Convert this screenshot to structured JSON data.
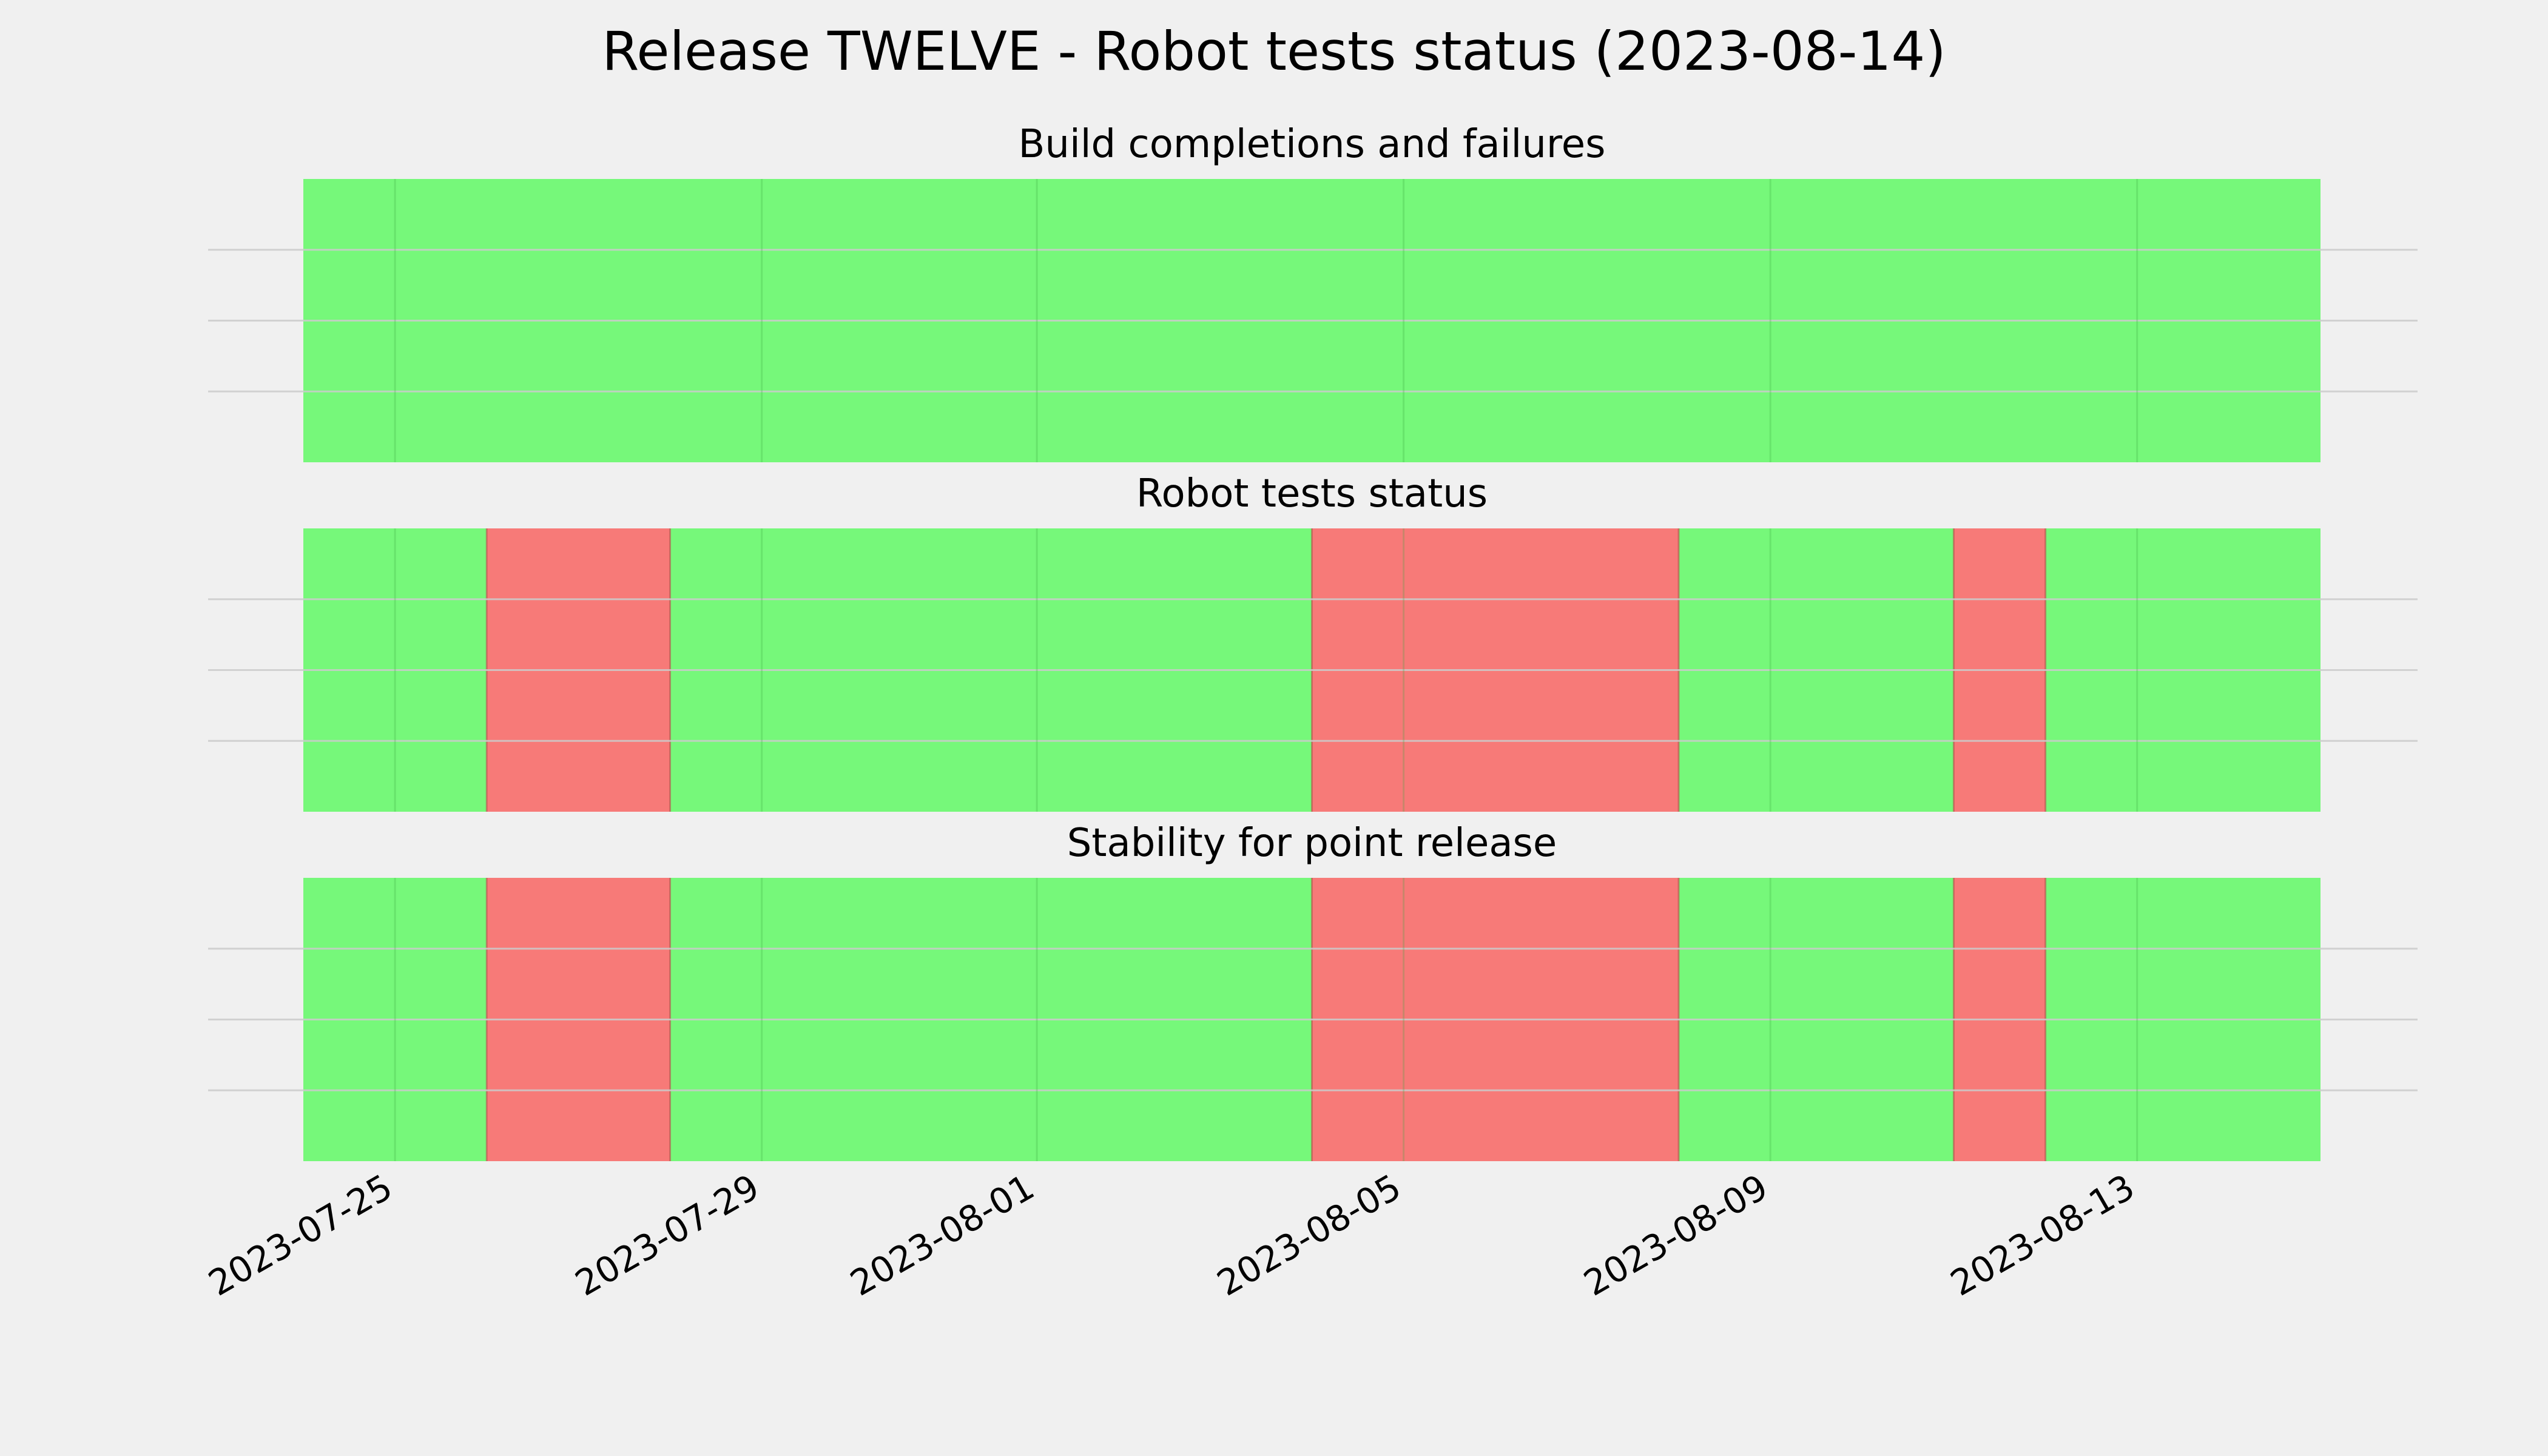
{
  "title": "Release TWELVE - Robot tests status (2023-08-14)",
  "colors": {
    "background": "#f0f0f0",
    "pass": "#76f87a",
    "fail": "#f77a78",
    "grid": "#cbcbcb",
    "day_line": "#66de6a"
  },
  "chart_data": [
    {
      "type": "bar",
      "title": "Build completions and failures",
      "xlabel": "",
      "ylabel": "",
      "grid": true,
      "x_axis": "date",
      "xlim": [
        "2023-07-24",
        "2023-08-15"
      ],
      "xticks": [
        "2023-07-25",
        "2023-07-29",
        "2023-08-01",
        "2023-08-05",
        "2023-08-09",
        "2023-08-13"
      ],
      "tick_labels_visible": false,
      "segments": [
        {
          "start": "2023-07-24",
          "end": "2023-08-15",
          "status": "pass"
        }
      ]
    },
    {
      "type": "bar",
      "title": "Robot tests status",
      "xlabel": "",
      "ylabel": "",
      "grid": true,
      "x_axis": "date",
      "xlim": [
        "2023-07-24",
        "2023-08-15"
      ],
      "xticks": [
        "2023-07-25",
        "2023-07-29",
        "2023-08-01",
        "2023-08-05",
        "2023-08-09",
        "2023-08-13"
      ],
      "tick_labels_visible": false,
      "segments": [
        {
          "start": "2023-07-24",
          "end": "2023-07-26",
          "status": "pass"
        },
        {
          "start": "2023-07-26",
          "end": "2023-07-28",
          "status": "fail"
        },
        {
          "start": "2023-07-28",
          "end": "2023-08-04",
          "status": "pass"
        },
        {
          "start": "2023-08-04",
          "end": "2023-08-08",
          "status": "fail"
        },
        {
          "start": "2023-08-08",
          "end": "2023-08-11",
          "status": "pass"
        },
        {
          "start": "2023-08-11",
          "end": "2023-08-12",
          "status": "fail"
        },
        {
          "start": "2023-08-12",
          "end": "2023-08-15",
          "status": "pass"
        }
      ]
    },
    {
      "type": "bar",
      "title": "Stability for point release",
      "xlabel": "",
      "ylabel": "",
      "grid": true,
      "x_axis": "date",
      "xlim": [
        "2023-07-24",
        "2023-08-15"
      ],
      "xticks": [
        "2023-07-25",
        "2023-07-29",
        "2023-08-01",
        "2023-08-05",
        "2023-08-09",
        "2023-08-13"
      ],
      "tick_labels_visible": true,
      "segments": [
        {
          "start": "2023-07-24",
          "end": "2023-07-26",
          "status": "pass"
        },
        {
          "start": "2023-07-26",
          "end": "2023-07-28",
          "status": "fail"
        },
        {
          "start": "2023-07-28",
          "end": "2023-08-04",
          "status": "pass"
        },
        {
          "start": "2023-08-04",
          "end": "2023-08-08",
          "status": "fail"
        },
        {
          "start": "2023-08-08",
          "end": "2023-08-11",
          "status": "pass"
        },
        {
          "start": "2023-08-11",
          "end": "2023-08-12",
          "status": "fail"
        },
        {
          "start": "2023-08-12",
          "end": "2023-08-15",
          "status": "pass"
        }
      ]
    }
  ]
}
